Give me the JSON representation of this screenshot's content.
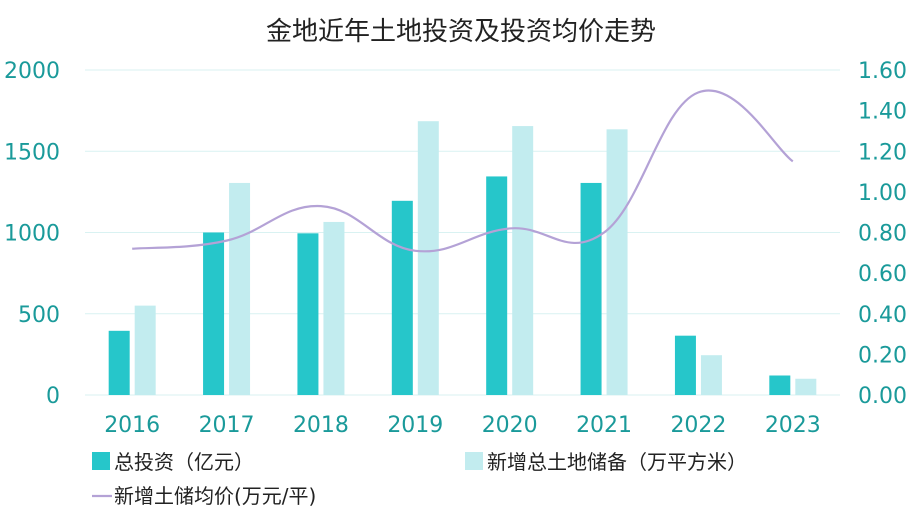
{
  "colors": {
    "total_investment": "#26C6CA",
    "new_land_reserve": "#C2ECEF",
    "avg_price_line": "#B4A2D6",
    "axis_text": "#1A9A9A",
    "title_text": "#222222",
    "legend_text": "#222222",
    "grid": "#D9F2F2"
  },
  "chart_data": {
    "type": "bar",
    "title": "金地近年土地投资及投资均价走势",
    "categories": [
      "2016",
      "2017",
      "2018",
      "2019",
      "2020",
      "2021",
      "2022",
      "2023"
    ],
    "series": [
      {
        "name": "总投资（亿元）",
        "type": "bar",
        "axis": "left",
        "values": [
          395,
          1000,
          995,
          1195,
          1345,
          1305,
          365,
          120
        ]
      },
      {
        "name": "新增总土地储备（万平方米）",
        "type": "bar",
        "axis": "left",
        "values": [
          550,
          1305,
          1065,
          1685,
          1655,
          1635,
          245,
          100
        ]
      },
      {
        "name": "新增土储均价(万元/平)",
        "type": "line",
        "axis": "right",
        "values": [
          0.72,
          0.76,
          0.93,
          0.71,
          0.82,
          0.8,
          1.49,
          1.15
        ]
      }
    ],
    "y_left": {
      "min": 0,
      "max": 2000,
      "ticks": [
        "0",
        "500",
        "1000",
        "1500",
        "2000"
      ]
    },
    "y_right": {
      "min": 0,
      "max": 1.6,
      "ticks": [
        "0.00",
        "0.20",
        "0.40",
        "0.60",
        "0.80",
        "1.00",
        "1.20",
        "1.40",
        "1.60"
      ]
    },
    "grid": true,
    "legend_position": "bottom-left"
  }
}
